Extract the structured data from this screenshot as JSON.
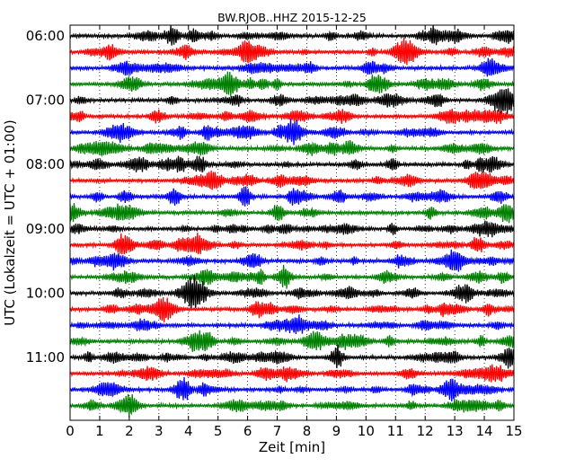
{
  "chart_data": {
    "type": "line",
    "title": "BW.RJOB..HHZ 2015-12-25",
    "xlabel": "Zeit  [min]",
    "ylabel": "UTC (Lokalzeit = UTC + 01:00)",
    "xlim": [
      0,
      15
    ],
    "x_ticks": [
      "0",
      "1",
      "2",
      "3",
      "4",
      "5",
      "6",
      "7",
      "8",
      "9",
      "10",
      "11",
      "12",
      "13",
      "14",
      "15"
    ],
    "y_ticks": [
      "06:00",
      "07:00",
      "08:00",
      "09:00",
      "10:00",
      "11:00"
    ],
    "rows_per_hour": 4,
    "row_start_times": [
      "06:00",
      "06:15",
      "06:30",
      "06:45",
      "07:00",
      "07:15",
      "07:30",
      "07:45",
      "08:00",
      "08:15",
      "08:30",
      "08:45",
      "09:00",
      "09:15",
      "09:30",
      "09:45",
      "10:00",
      "10:15",
      "10:30",
      "10:45",
      "11:00",
      "11:15",
      "11:30",
      "11:45"
    ],
    "row_colors": [
      "#000000",
      "#ff0000",
      "#0000ff",
      "#008000"
    ],
    "grid": "vertical-dotted"
  }
}
